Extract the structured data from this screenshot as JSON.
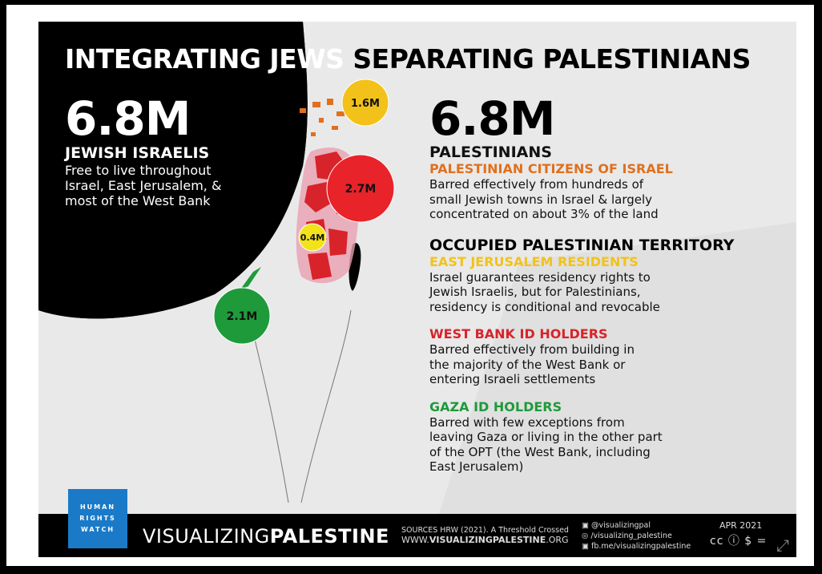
{
  "title": {
    "part1": "INTEGRATING JEWS",
    "part2": "SEPARATING PALESTINIANS"
  },
  "jewish": {
    "number": "6.8M",
    "label": "JEWISH ISRAELIS",
    "desc1": "Free to live throughout",
    "desc2": "Israel, East Jerusalem, &",
    "desc3": "most of  the West Bank"
  },
  "palestinians": {
    "number": "6.8M",
    "label": "PALESTINIANS",
    "citizens": {
      "heading": "PALESTINIAN CITIZENS OF ISRAEL",
      "l1": "Barred effectively from hundreds of",
      "l2": "small Jewish towns in Israel & largely",
      "l3": "concentrated on about 3% of the land"
    },
    "opt_heading": "OCCUPIED PALESTINIAN TERRITORY",
    "ej": {
      "heading": "EAST JERUSALEM RESIDENTS",
      "l1": "Israel guarantees residency rights to",
      "l2": "Jewish Israelis, but for Palestinians,",
      "l3": "residency is conditional and revocable"
    },
    "wb": {
      "heading": "WEST BANK ID HOLDERS",
      "l1": "Barred effectively from building in",
      "l2": "the majority of the West Bank or",
      "l3": "entering Israeli settlements"
    },
    "gaza": {
      "heading": "GAZA ID HOLDERS",
      "l1": "Barred with few exceptions from",
      "l2": "leaving Gaza or living in the other part",
      "l3": "of the OPT (the West Bank, including",
      "l4": "East Jerusalem)"
    }
  },
  "circles": {
    "israel": {
      "label": "1.6M",
      "color": "#f2c21a"
    },
    "westbank": {
      "label": "2.7M",
      "color": "#e8232a"
    },
    "eastjerusalem": {
      "label": "0.4M",
      "color": "#f2e21a"
    },
    "gaza": {
      "label": "2.1M",
      "color": "#1f9a3b"
    }
  },
  "footer": {
    "hrw1": "HUMAN",
    "hrw2": "RIGHTS",
    "hrw3": "WATCH",
    "brand_light": "VISUALIZING",
    "brand_bold": "PALESTINE",
    "sources1": "SOURCES HRW (2021). A Threshold Crossed",
    "sources2_light": "WWW.",
    "sources2_bold": "VISUALIZINGPALESTINE",
    "sources2_end": ".ORG",
    "twitter": "@visualizingpal",
    "instagram": "/visualizing_palestine",
    "facebook": "fb.me/visualizingpalestine",
    "date": "APR 2021",
    "license": "cc ⓘ $ ="
  }
}
